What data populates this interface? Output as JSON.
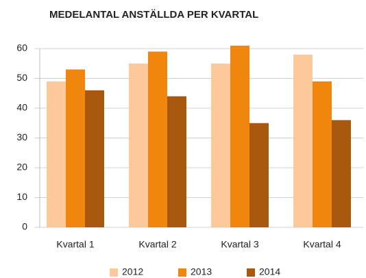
{
  "chart_data": {
    "type": "bar",
    "title": "MEDELANTAL ANSTÄLLDA PER KVARTAL",
    "categories": [
      "Kvartal 1",
      "Kvartal 2",
      "Kvartal 3",
      "Kvartal 4"
    ],
    "series": [
      {
        "name": "2012",
        "color": "#fbc99a",
        "values": [
          49,
          55,
          55,
          58
        ]
      },
      {
        "name": "2013",
        "color": "#f0860d",
        "values": [
          53,
          59,
          61,
          49
        ]
      },
      {
        "name": "2014",
        "color": "#a9580f",
        "values": [
          46,
          44,
          35,
          36
        ]
      }
    ],
    "ylim": [
      0,
      60
    ],
    "yticks": [
      0,
      10,
      20,
      30,
      40,
      50,
      60
    ],
    "grid": true,
    "legend": "bottom"
  }
}
